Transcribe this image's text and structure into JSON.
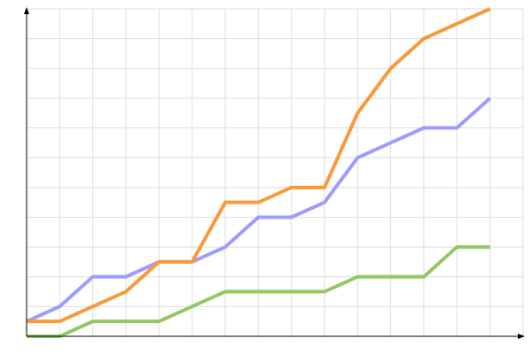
{
  "chart_data": {
    "type": "line",
    "x": [
      0,
      1,
      2,
      3,
      4,
      5,
      6,
      7,
      8,
      9,
      10,
      11,
      12,
      13,
      14
    ],
    "series": [
      {
        "color": "#9d9cff",
        "values": [
          0.5,
          1,
          2,
          2,
          2.5,
          2.5,
          3,
          4,
          4,
          4.5,
          6,
          6.5,
          7,
          7,
          8
        ]
      },
      {
        "color": "#f8993a",
        "values": [
          0.5,
          0.5,
          1,
          1.5,
          2.5,
          2.5,
          4.5,
          4.5,
          5,
          5,
          7.5,
          9,
          10,
          10.5,
          11
        ]
      },
      {
        "color": "#94c865",
        "values": [
          0,
          0,
          0.5,
          0.5,
          0.5,
          1,
          1.5,
          1.5,
          1.5,
          1.5,
          2,
          2,
          2,
          3,
          3
        ]
      }
    ],
    "xlim": [
      0,
      15
    ],
    "xticks": [
      0,
      1,
      2,
      3,
      4,
      5,
      6,
      7,
      8,
      9,
      10,
      11,
      12,
      13,
      14,
      15
    ],
    "ylim": [
      0,
      11
    ],
    "yticks": [
      0,
      1,
      2,
      3,
      4,
      5,
      6,
      7,
      8,
      9,
      10,
      11
    ],
    "grid": true
  }
}
